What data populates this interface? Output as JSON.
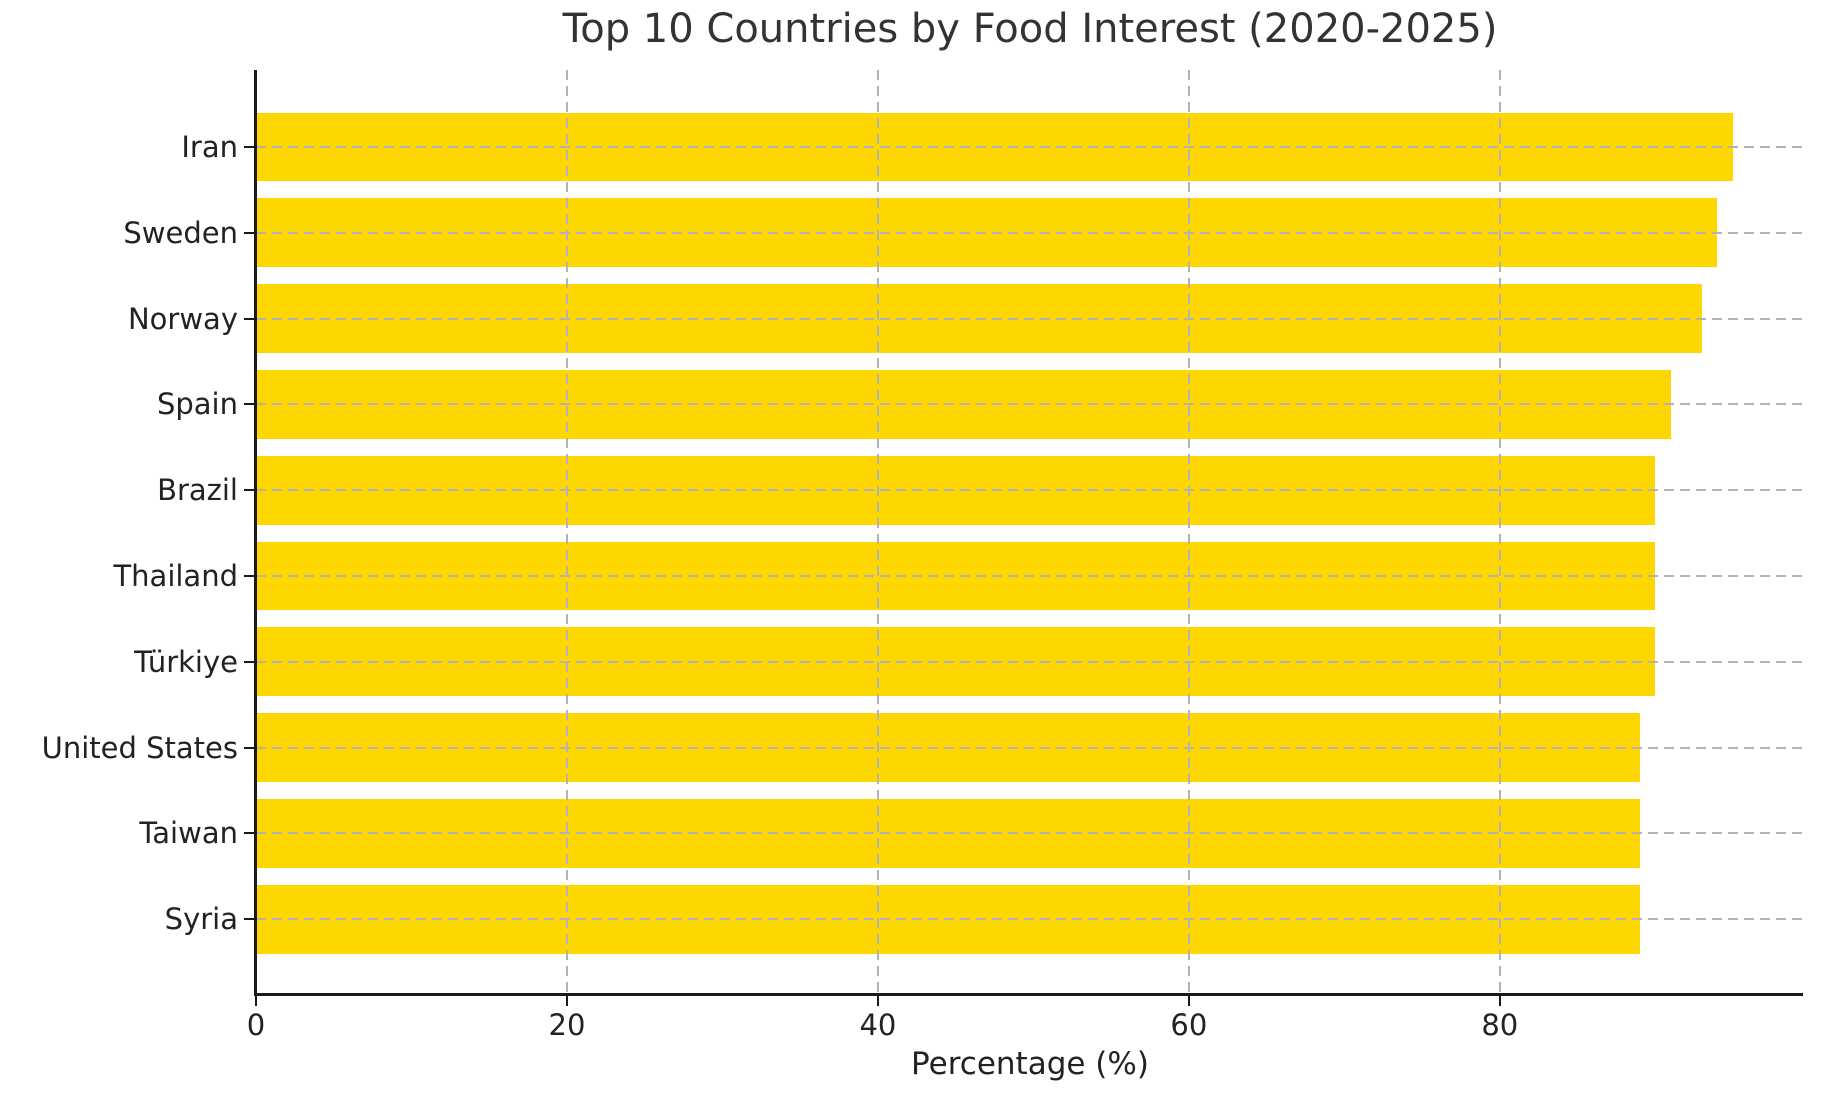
{
  "figure": {
    "title": "Top 10 Countries by Food Interest (2020-2025)",
    "xlabel": "Percentage (%)"
  },
  "chart_data": {
    "type": "bar",
    "orientation": "horizontal",
    "title": "Top 10 Countries by Food Interest (2020-2025)",
    "xlabel": "Percentage (%)",
    "ylabel": "",
    "categories": [
      "Iran",
      "Sweden",
      "Norway",
      "Spain",
      "Brazil",
      "Thailand",
      "Türkiye",
      "United States",
      "Taiwan",
      "Syria"
    ],
    "values": [
      95,
      94,
      93,
      91,
      90,
      90,
      90,
      89,
      89,
      89
    ],
    "xticks": [
      0,
      20,
      40,
      60,
      80
    ],
    "xlim": [
      0,
      99.5
    ],
    "bar_color": "#FFD700",
    "grid": true,
    "grid_color": "#b3b3b3",
    "grid_style": "dashed",
    "grid_above_bars": true,
    "axis_color": "#1a1a1a",
    "title_color": "#333333",
    "tick_label_color": "#222222",
    "background_color": "#ffffff",
    "legend": null
  }
}
